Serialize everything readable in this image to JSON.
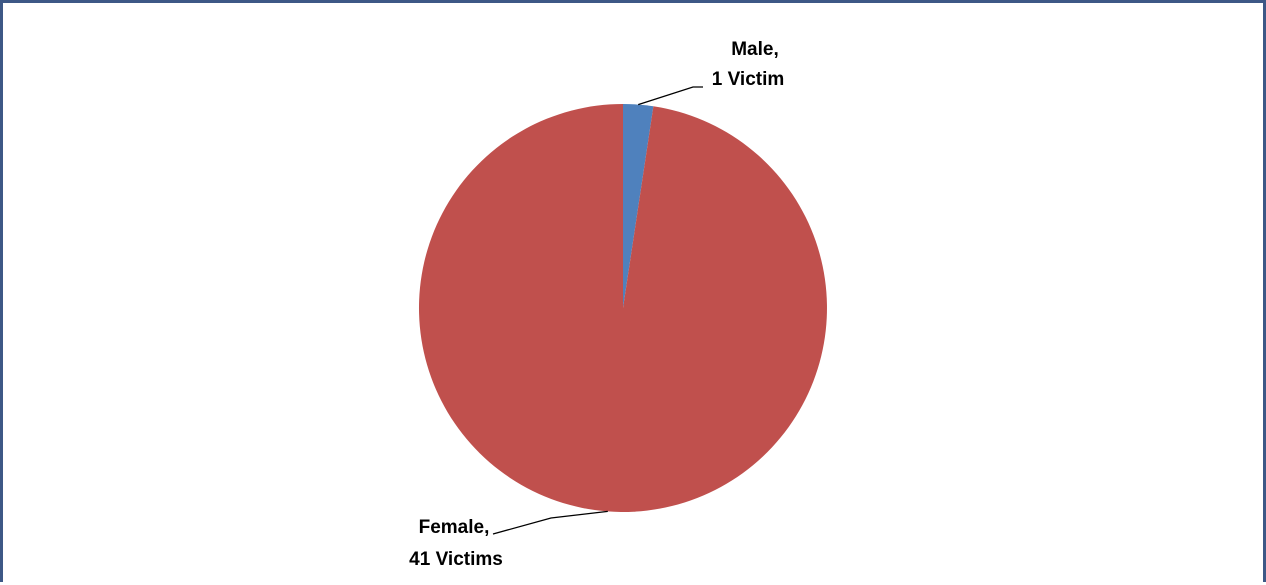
{
  "chart_data": {
    "type": "pie",
    "categories": [
      "Male",
      "Female"
    ],
    "values": [
      1,
      41
    ],
    "data_labels": [
      {
        "category": "Male,",
        "value": "1 Victim"
      },
      {
        "category": "Female,",
        "value": "41 Victims"
      }
    ],
    "colors": [
      "#4f81bd",
      "#c0504d"
    ],
    "start_angle_degrees": 0,
    "direction": "clockwise",
    "legend": "none"
  },
  "colors": {
    "border": "#3d5886",
    "background": "#ffffff"
  }
}
